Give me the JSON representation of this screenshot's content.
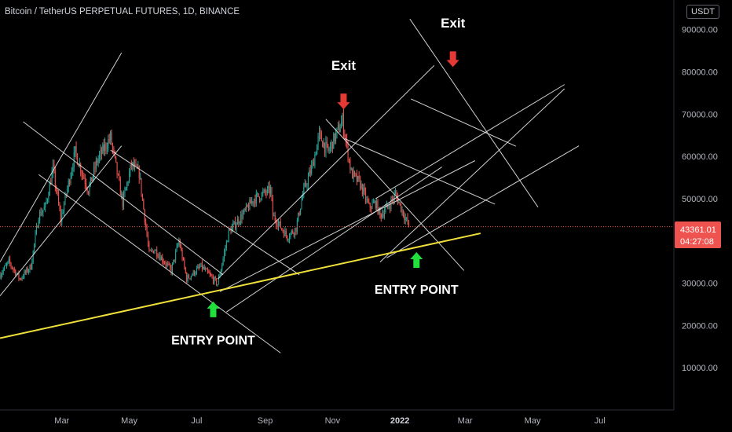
{
  "header": {
    "title": "Bitcoin / TetherUS PERPETUAL FUTURES, 1D, BINANCE",
    "currency": "USDT"
  },
  "price_tag": {
    "price": "43361.01",
    "countdown": "04:27:08"
  },
  "colors": {
    "up": "#26a69a",
    "down": "#ef5350",
    "trendline": "#f0e03a",
    "channel": "#e6e6e6",
    "arrow_down": "#e53935",
    "arrow_up": "#22e03c",
    "price_tag": "#ef5350"
  },
  "chart_data": {
    "type": "candlestick",
    "title": "Bitcoin / TetherUS PERPETUAL FUTURES, 1D, BINANCE",
    "y_axis": {
      "ticks": [
        "90000.00",
        "80000.00",
        "70000.00",
        "60000.00",
        "50000.00",
        "40000.00",
        "30000.00",
        "20000.00",
        "10000.00"
      ],
      "range": [
        0,
        97000
      ]
    },
    "x_axis": {
      "ticks": [
        {
          "label": "Mar",
          "date": "2021-03-01"
        },
        {
          "label": "May",
          "date": "2021-05-01"
        },
        {
          "label": "Jul",
          "date": "2021-07-01"
        },
        {
          "label": "Sep",
          "date": "2021-09-01"
        },
        {
          "label": "Nov",
          "date": "2021-11-01"
        },
        {
          "label": "2022",
          "date": "2022-01-01",
          "bold": true
        },
        {
          "label": "Mar",
          "date": "2022-03-01"
        },
        {
          "label": "May",
          "date": "2022-05-01"
        },
        {
          "label": "Jul",
          "date": "2022-07-01"
        }
      ],
      "range": [
        "2021-01-04",
        "2022-09-06"
      ]
    },
    "last_price": 43361.01,
    "price_path": [
      [
        "2021-01-04",
        32000
      ],
      [
        "2021-01-12",
        35000
      ],
      [
        "2021-01-22",
        31000
      ],
      [
        "2021-02-01",
        34000
      ],
      [
        "2021-02-08",
        46000
      ],
      [
        "2021-02-14",
        48000
      ],
      [
        "2021-02-21",
        57000
      ],
      [
        "2021-02-28",
        45000
      ],
      [
        "2021-03-13",
        61000
      ],
      [
        "2021-03-25",
        52000
      ],
      [
        "2021-04-02",
        59000
      ],
      [
        "2021-04-14",
        64500
      ],
      [
        "2021-04-25",
        49000
      ],
      [
        "2021-05-03",
        58000
      ],
      [
        "2021-05-10",
        56000
      ],
      [
        "2021-05-19",
        37000
      ],
      [
        "2021-05-24",
        38000
      ],
      [
        "2021-06-08",
        33000
      ],
      [
        "2021-06-15",
        40000
      ],
      [
        "2021-06-22",
        31000
      ],
      [
        "2021-07-05",
        34000
      ],
      [
        "2021-07-20",
        29800
      ],
      [
        "2021-07-30",
        42000
      ],
      [
        "2021-08-14",
        47000
      ],
      [
        "2021-08-22",
        50000
      ],
      [
        "2021-09-06",
        52000
      ],
      [
        "2021-09-08",
        46000
      ],
      [
        "2021-09-21",
        41000
      ],
      [
        "2021-09-29",
        43000
      ],
      [
        "2021-10-05",
        51000
      ],
      [
        "2021-10-14",
        58000
      ],
      [
        "2021-10-20",
        65000
      ],
      [
        "2021-10-28",
        61000
      ],
      [
        "2021-11-10",
        68500
      ],
      [
        "2021-11-18",
        56000
      ],
      [
        "2021-11-26",
        53500
      ],
      [
        "2021-12-04",
        48000
      ],
      [
        "2021-12-10",
        49000
      ],
      [
        "2021-12-14",
        46000
      ],
      [
        "2021-12-21",
        48000
      ],
      [
        "2021-12-28",
        51000
      ],
      [
        "2022-01-05",
        46000
      ],
      [
        "2022-01-09",
        43361
      ]
    ],
    "trendline": {
      "points": [
        [
          "2021-01-04",
          17000
        ],
        [
          "2022-03-15",
          41800
        ]
      ],
      "color": "#f0e03a"
    },
    "channel_lines": [
      [
        [
          "2021-01-04",
          35000
        ],
        [
          "2021-04-24",
          84500
        ]
      ],
      [
        [
          "2021-01-04",
          27000
        ],
        [
          "2021-04-24",
          62500
        ]
      ],
      [
        [
          "2021-01-25",
          68200
        ],
        [
          "2021-07-25",
          32000
        ]
      ],
      [
        [
          "2021-02-08",
          55700
        ],
        [
          "2021-09-15",
          13500
        ]
      ],
      [
        [
          "2021-04-14",
          61500
        ],
        [
          "2021-10-02",
          32000
        ]
      ],
      [
        [
          "2021-07-20",
          31000
        ],
        [
          "2022-02-01",
          81500
        ]
      ],
      [
        [
          "2021-07-22",
          28000
        ],
        [
          "2022-03-10",
          59000
        ]
      ],
      [
        [
          "2021-07-28",
          23200
        ],
        [
          "2022-02-08",
          57500
        ]
      ],
      [
        [
          "2021-10-26",
          68800
        ],
        [
          "2022-02-28",
          33000
        ]
      ],
      [
        [
          "2021-11-12",
          64200
        ],
        [
          "2022-03-28",
          48700
        ]
      ],
      [
        [
          "2021-12-14",
          35000
        ],
        [
          "2022-05-30",
          76000
        ]
      ],
      [
        [
          "2021-12-10",
          50000
        ],
        [
          "2022-05-30",
          77000
        ]
      ],
      [
        [
          "2021-12-20",
          36000
        ],
        [
          "2022-06-12",
          62500
        ]
      ],
      [
        [
          "2022-01-10",
          92500
        ],
        [
          "2022-05-06",
          48000
        ]
      ],
      [
        [
          "2022-01-11",
          73600
        ],
        [
          "2022-04-16",
          62400
        ]
      ]
    ],
    "annotations": [
      {
        "text": "Exit",
        "date": "2021-11-11",
        "price": 80500,
        "arrow": "down",
        "arrow_price": 73000
      },
      {
        "text": "Exit",
        "date": "2022-02-18",
        "price": 90500,
        "arrow": "down",
        "arrow_price": 83000
      },
      {
        "text": "ENTRY POINT",
        "date": "2021-07-16",
        "price": 15500,
        "arrow": "up",
        "arrow_price": 23800
      },
      {
        "text": "ENTRY POINT",
        "date": "2022-01-16",
        "price": 27500,
        "arrow": "up",
        "arrow_price": 35500
      }
    ]
  }
}
